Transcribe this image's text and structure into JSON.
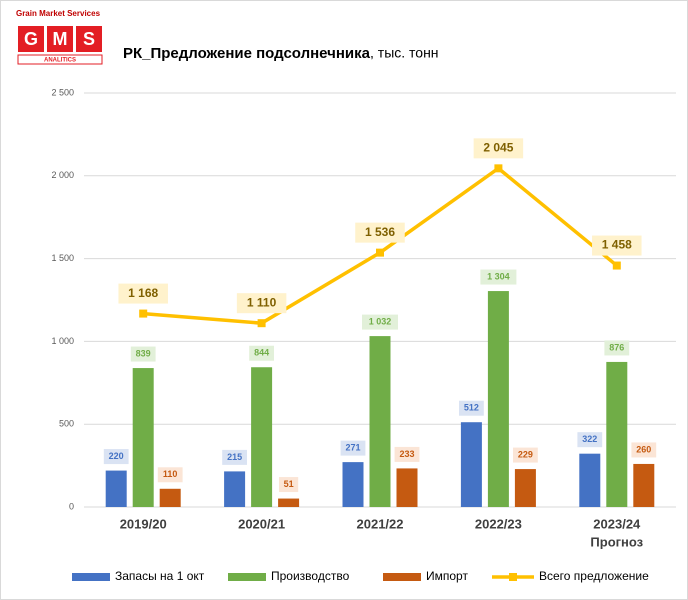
{
  "chart_data": {
    "type": "bar_line",
    "logo": {
      "caption": "Grain Market Services",
      "letters": [
        "G",
        "M",
        "S"
      ],
      "tagline": "ANALITICS"
    },
    "title": "РК_Предложение подсолнечника",
    "title_suffix": ", тыс. тонн",
    "categories": [
      "2019/20",
      "2020/21",
      "2021/22",
      "2022/23",
      "2023/24"
    ],
    "category_sublabels": [
      null,
      null,
      null,
      null,
      "Прогноз"
    ],
    "ylim": [
      0,
      2500
    ],
    "yticks": [
      0,
      500,
      {
        "value": 1000,
        "label": "1 000"
      },
      {
        "value": 1500,
        "label": "1 500"
      },
      {
        "value": 2000,
        "label": "2 000"
      },
      {
        "value": 2500,
        "label": "2 500"
      }
    ],
    "grid": true,
    "legend": "bottom",
    "series": [
      {
        "name": "Запасы на 1 окт",
        "type": "bar",
        "color": "#4472c4",
        "label_bg": "#dae3f3",
        "values": [
          220,
          215,
          271,
          512,
          322
        ]
      },
      {
        "name": "Производство",
        "type": "bar",
        "color": "#70ad47",
        "label_bg": "#e2f0d9",
        "values": [
          839,
          844,
          1032,
          1304,
          876
        ],
        "value_labels": [
          "839",
          "844",
          "1 032",
          "1 304",
          "876"
        ]
      },
      {
        "name": "Импорт",
        "type": "bar",
        "color": "#c55a11",
        "label_bg": "#fbe5d6",
        "values": [
          110,
          51,
          233,
          229,
          260
        ]
      },
      {
        "name": "Всего предложение",
        "type": "line",
        "color": "#ffc000",
        "label_bg": "#fff2cc",
        "values": [
          1168,
          1110,
          1536,
          2045,
          1458
        ],
        "value_labels": [
          "1 168",
          "1 110",
          "1 536",
          "2 045",
          "1 458"
        ]
      }
    ]
  }
}
